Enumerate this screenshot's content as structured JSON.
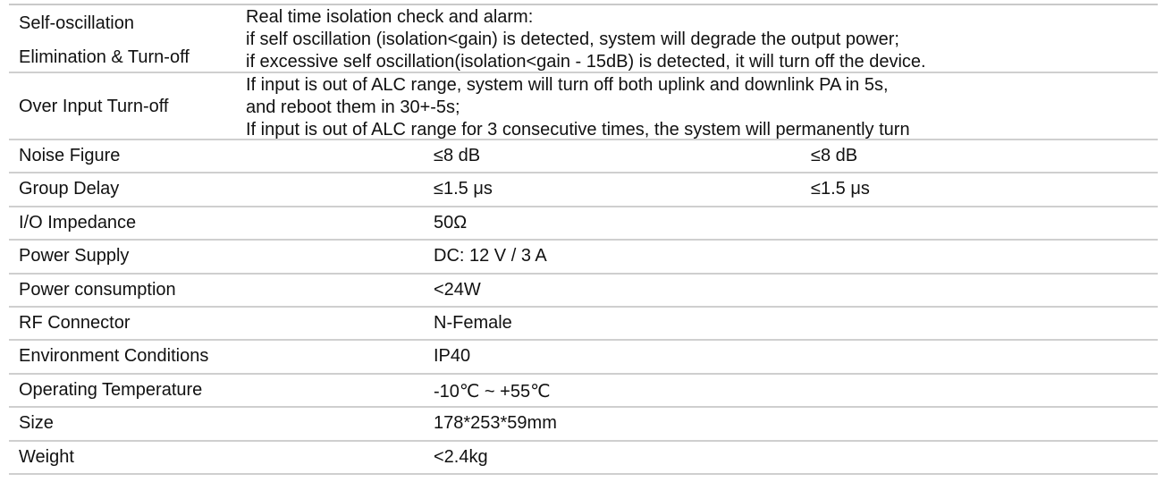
{
  "rows_multi": [
    {
      "label_lines": [
        "Self-oscillation",
        "Elimination & Turn-off"
      ],
      "desc_lines": [
        "Real time isolation check and alarm:",
        "if self oscillation (isolation<gain) is detected, system will degrade the output power;",
        "if excessive self oscillation(isolation<gain - 15dB) is detected, it will turn off the device."
      ]
    },
    {
      "label": "Over Input Turn-off",
      "desc_lines": [
        "If input is out of ALC range, system will turn off both uplink and downlink PA in 5s,",
        "and reboot them in 30+-5s;",
        "If input is out of ALC range for 3 consecutive times, the system will permanently turn"
      ]
    }
  ],
  "rows": [
    {
      "label": "Noise Figure",
      "value": "≤8 dB",
      "value2": "≤8 dB"
    },
    {
      "label": "Group Delay",
      "value": "≤1.5 μs",
      "value2": "≤1.5 μs"
    },
    {
      "label": "I/O Impedance",
      "value": "50Ω"
    },
    {
      "label": "Power Supply",
      "value": "DC: 12 V / 3 A"
    },
    {
      "label": "Power consumption",
      "value": "<24W"
    },
    {
      "label": "RF Connector",
      "value": "N-Female"
    },
    {
      "label": "Environment Conditions",
      "value": "IP40"
    },
    {
      "label": "Operating Temperature",
      "value": "-10℃ ~ +55℃"
    },
    {
      "label": "Size",
      "value": "178*253*59mm"
    },
    {
      "label": "Weight",
      "value": "<2.4kg"
    }
  ]
}
